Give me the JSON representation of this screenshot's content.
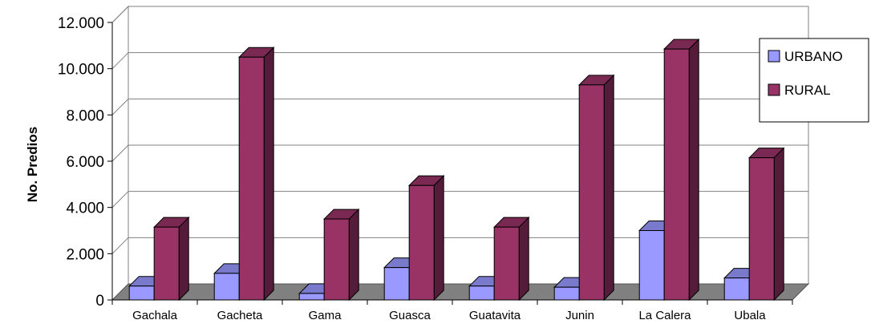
{
  "chart_data": {
    "type": "bar",
    "title": "",
    "xlabel": "",
    "ylabel": "No. Predios",
    "ylim": [
      0,
      12000
    ],
    "yticks": [
      "0",
      "2.000",
      "4.000",
      "6.000",
      "8.000",
      "10.000",
      "12.000"
    ],
    "categories": [
      "Gachala",
      "Gacheta",
      "Gama",
      "Guasca",
      "Guatavita",
      "Junin",
      "La Calera",
      "Ubala"
    ],
    "series": [
      {
        "name": "URBANO",
        "color": "#9999ff",
        "values": [
          600,
          1150,
          280,
          1400,
          600,
          550,
          3000,
          950
        ]
      },
      {
        "name": "RURAL",
        "color": "#993366",
        "values": [
          3150,
          10500,
          3500,
          4950,
          3150,
          9300,
          10850,
          6150
        ]
      }
    ],
    "grid": true,
    "legend_position": "right",
    "style": "3d-column"
  }
}
